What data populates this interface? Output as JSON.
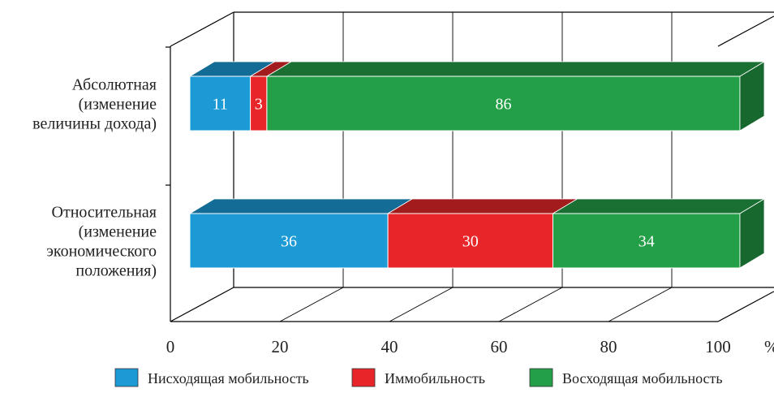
{
  "chart_data": {
    "type": "bar",
    "orientation": "horizontal",
    "stacked": true,
    "style": "3d",
    "categories": [
      [
        "Абсолютная",
        "(изменение",
        "величины дохода)"
      ],
      [
        "Относительная",
        "(изменение",
        "экономического",
        "положения)"
      ]
    ],
    "series": [
      {
        "name": "Нисходящая мобильность",
        "color": "#1b9ad6",
        "values": [
          11,
          36
        ]
      },
      {
        "name": "Иммобильность",
        "color": "#e8262a",
        "values": [
          3,
          30
        ]
      },
      {
        "name": "Восходящая мобильность",
        "color": "#23a047",
        "values": [
          86,
          34
        ]
      }
    ],
    "xticks": [
      "0",
      "20",
      "40",
      "60",
      "80",
      "100"
    ],
    "xunit": "%",
    "xlim": [
      0,
      100
    ],
    "grid": true,
    "legend_position": "bottom"
  }
}
